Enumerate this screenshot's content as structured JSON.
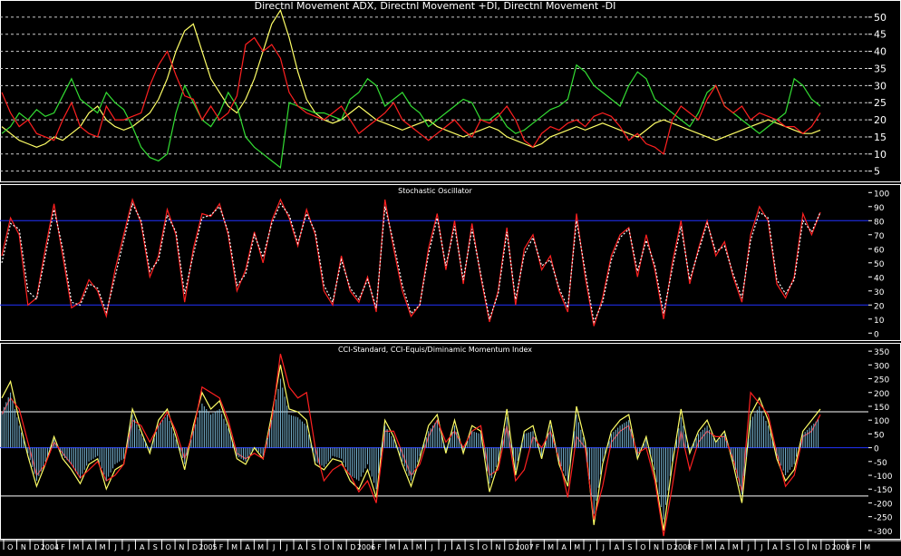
{
  "chart_data": [
    {
      "type": "line",
      "title": "Directnl Movement ADX, Directnl Movement +DI, Directnl Movement -DI",
      "yticks": [
        5,
        10,
        15,
        20,
        25,
        30,
        35,
        40,
        45,
        50
      ],
      "ylim": [
        2,
        55
      ],
      "colors": {
        "adx": "#ffff66",
        "plus_di": "#33dd33",
        "minus_di": "#ff2020",
        "grid": "#cccccc"
      },
      "series": [
        {
          "key": "adx",
          "values": [
            18,
            16,
            14,
            13,
            12,
            13,
            15,
            14,
            16,
            18,
            22,
            24,
            20,
            18,
            17,
            18,
            20,
            22,
            26,
            32,
            40,
            46,
            48,
            40,
            32,
            28,
            24,
            22,
            26,
            32,
            40,
            48,
            52,
            44,
            34,
            26,
            22,
            20,
            19,
            20,
            22,
            24,
            22,
            20,
            19,
            18,
            17,
            18,
            19,
            20,
            18,
            17,
            16,
            15,
            16,
            17,
            18,
            17,
            15,
            14,
            13,
            12,
            13,
            15,
            16,
            17,
            18,
            17,
            18,
            19,
            18,
            17,
            16,
            15,
            17,
            19,
            20,
            19,
            18,
            17,
            16,
            15,
            14,
            15,
            16,
            17,
            18,
            19,
            20,
            19,
            18,
            17,
            16,
            16,
            17
          ]
        },
        {
          "key": "plus_di",
          "values": [
            16,
            18,
            22,
            20,
            23,
            21,
            22,
            27,
            32,
            26,
            24,
            22,
            28,
            25,
            23,
            18,
            12,
            9,
            8,
            10,
            22,
            30,
            25,
            20,
            18,
            22,
            28,
            24,
            15,
            12,
            10,
            8,
            6,
            25,
            24,
            23,
            22,
            22,
            21,
            20,
            26,
            28,
            32,
            30,
            24,
            26,
            28,
            24,
            22,
            18,
            20,
            22,
            24,
            26,
            25,
            20,
            20,
            22,
            18,
            16,
            17,
            19,
            21,
            23,
            24,
            26,
            36,
            34,
            30,
            28,
            26,
            24,
            30,
            34,
            32,
            26,
            24,
            22,
            20,
            18,
            22,
            28,
            30,
            24,
            22,
            20,
            18,
            16,
            18,
            20,
            22,
            32,
            30,
            26,
            24
          ]
        },
        {
          "key": "minus_di",
          "values": [
            28,
            22,
            18,
            20,
            16,
            15,
            14,
            20,
            25,
            18,
            16,
            15,
            24,
            20,
            20,
            21,
            22,
            30,
            36,
            40,
            33,
            27,
            26,
            20,
            24,
            20,
            22,
            27,
            42,
            44,
            40,
            42,
            38,
            28,
            24,
            22,
            21,
            20,
            22,
            24,
            20,
            16,
            18,
            20,
            22,
            25,
            20,
            18,
            16,
            14,
            16,
            18,
            20,
            17,
            15,
            20,
            19,
            21,
            24,
            20,
            14,
            12,
            16,
            18,
            17,
            19,
            20,
            18,
            21,
            22,
            21,
            18,
            14,
            16,
            13,
            12,
            10,
            20,
            24,
            22,
            20,
            26,
            30,
            24,
            22,
            24,
            20,
            22,
            21,
            20,
            18,
            18,
            16,
            18,
            22
          ]
        }
      ]
    },
    {
      "type": "line",
      "title": "Stochastic Oscillator",
      "yticks": [
        0,
        10,
        20,
        30,
        40,
        50,
        60,
        70,
        80,
        90,
        100
      ],
      "ylim": [
        -5,
        106
      ],
      "reference_lines": [
        20,
        80
      ],
      "colors": {
        "k": "#ff2020",
        "d": "#ffffff",
        "ref": "#2233ff"
      },
      "series": [
        {
          "key": "k",
          "values": [
            55,
            82,
            70,
            20,
            25,
            60,
            92,
            55,
            18,
            22,
            38,
            30,
            12,
            45,
            70,
            95,
            78,
            40,
            55,
            88,
            70,
            22,
            60,
            85,
            83,
            92,
            70,
            30,
            45,
            72,
            50,
            80,
            95,
            82,
            62,
            88,
            70,
            30,
            20,
            55,
            30,
            22,
            40,
            15,
            95,
            60,
            30,
            12,
            20,
            60,
            85,
            45,
            80,
            35,
            78,
            40,
            8,
            30,
            75,
            20,
            60,
            70,
            45,
            55,
            30,
            15,
            85,
            40,
            5,
            25,
            55,
            70,
            75,
            40,
            70,
            45,
            10,
            50,
            80,
            35,
            60,
            80,
            55,
            65,
            40,
            22,
            70,
            90,
            80,
            35,
            25,
            40,
            85,
            70,
            86
          ]
        },
        {
          "key": "d",
          "values": [
            50,
            78,
            74,
            30,
            24,
            55,
            88,
            60,
            22,
            20,
            35,
            32,
            15,
            40,
            66,
            92,
            80,
            44,
            52,
            84,
            72,
            28,
            56,
            82,
            84,
            90,
            72,
            34,
            42,
            70,
            54,
            78,
            92,
            84,
            64,
            85,
            72,
            34,
            22,
            52,
            32,
            24,
            38,
            18,
            90,
            64,
            34,
            14,
            20,
            56,
            82,
            48,
            76,
            38,
            74,
            42,
            10,
            28,
            72,
            24,
            56,
            68,
            48,
            52,
            32,
            18,
            80,
            44,
            8,
            22,
            52,
            68,
            74,
            44,
            66,
            48,
            14,
            46,
            76,
            38,
            58,
            78,
            58,
            62,
            42,
            25,
            66,
            86,
            82,
            38,
            28,
            38,
            80,
            72,
            86
          ]
        }
      ]
    },
    {
      "type": "line",
      "title": "CCI-Standard, CCI-Equis/Diminamic Momentum Index",
      "yticks": [
        -300,
        -250,
        -200,
        -150,
        -100,
        -50,
        0,
        50,
        100,
        150,
        200,
        250,
        300,
        350
      ],
      "ylim": [
        -330,
        380
      ],
      "reference_lines": [
        -175,
        0,
        130
      ],
      "colors": {
        "cci_standard": "#ffff66",
        "cci_equis": "#ff2020",
        "momentum": "#88ccee",
        "zero": "#2233ff",
        "ref": "#ffffff"
      },
      "series": [
        {
          "key": "cci_standard",
          "values": [
            180,
            240,
            100,
            -30,
            -140,
            -60,
            40,
            -40,
            -80,
            -130,
            -60,
            -40,
            -150,
            -80,
            -60,
            140,
            60,
            -20,
            100,
            140,
            40,
            -80,
            80,
            200,
            140,
            170,
            80,
            -40,
            -60,
            0,
            -40,
            120,
            300,
            140,
            130,
            100,
            -60,
            -80,
            -40,
            -50,
            -120,
            -150,
            -80,
            -180,
            100,
            40,
            -60,
            -140,
            -40,
            80,
            120,
            -20,
            100,
            -20,
            80,
            60,
            -160,
            -60,
            140,
            -100,
            60,
            80,
            -40,
            100,
            -60,
            -140,
            150,
            20,
            -280,
            -60,
            60,
            100,
            120,
            -40,
            40,
            -100,
            -300,
            -60,
            140,
            -20,
            60,
            100,
            20,
            60,
            -60,
            -200,
            120,
            180,
            100,
            -40,
            -120,
            -80,
            60,
            100,
            140
          ]
        },
        {
          "key": "cci_equis",
          "values": [
            120,
            180,
            140,
            20,
            -100,
            -60,
            20,
            -20,
            -60,
            -110,
            -80,
            -50,
            -120,
            -100,
            -60,
            100,
            80,
            20,
            80,
            130,
            60,
            -40,
            60,
            220,
            200,
            180,
            100,
            -20,
            -40,
            -20,
            -40,
            100,
            340,
            220,
            180,
            200,
            0,
            -120,
            -80,
            -60,
            -100,
            -160,
            -120,
            -200,
            60,
            60,
            -20,
            -100,
            -60,
            40,
            100,
            20,
            60,
            0,
            60,
            80,
            -100,
            -80,
            80,
            -120,
            -80,
            40,
            0,
            60,
            -40,
            -180,
            40,
            0,
            -260,
            -140,
            20,
            60,
            80,
            -20,
            0,
            -120,
            -320,
            -140,
            60,
            -80,
            20,
            60,
            40,
            40,
            -40,
            -160,
            200,
            160,
            120,
            -20,
            -140,
            -100,
            40,
            60,
            120
          ]
        },
        {
          "key": "momentum",
          "values": [
            130,
            200,
            80,
            -20,
            -120,
            -50,
            30,
            -30,
            -60,
            -110,
            -50,
            -30,
            -120,
            -60,
            -40,
            120,
            50,
            -10,
            80,
            120,
            30,
            -60,
            60,
            160,
            120,
            140,
            70,
            -30,
            -50,
            0,
            -30,
            100,
            250,
            120,
            110,
            80,
            -50,
            -70,
            -30,
            -40,
            -100,
            -120,
            -60,
            -150,
            80,
            30,
            -50,
            -120,
            -30,
            60,
            100,
            -10,
            80,
            -10,
            60,
            50,
            -130,
            -50,
            110,
            -80,
            50,
            60,
            -30,
            80,
            -50,
            -120,
            120,
            10,
            -240,
            -50,
            50,
            80,
            100,
            -30,
            30,
            -80,
            -260,
            -50,
            110,
            -10,
            50,
            80,
            20,
            50,
            -50,
            -170,
            100,
            150,
            80,
            -30,
            -100,
            -60,
            50,
            80,
            110
          ]
        }
      ]
    }
  ],
  "x_axis": {
    "labels": [
      "O",
      "N",
      "D",
      "2004",
      "F",
      "M",
      "A",
      "M",
      "J",
      "J",
      "A",
      "S",
      "O",
      "N",
      "D",
      "2005",
      "F",
      "M",
      "A",
      "M",
      "J",
      "J",
      "A",
      "S",
      "O",
      "N",
      "D",
      "2006",
      "F",
      "M",
      "A",
      "M",
      "J",
      "J",
      "A",
      "S",
      "O",
      "N",
      "D",
      "2007",
      "F",
      "M",
      "A",
      "M",
      "J",
      "J",
      "A",
      "S",
      "O",
      "N",
      "D",
      "2008",
      "F",
      "M",
      "A",
      "M",
      "J",
      "J",
      "A",
      "S",
      "O",
      "N",
      "D",
      "2009",
      "F",
      "M"
    ]
  }
}
